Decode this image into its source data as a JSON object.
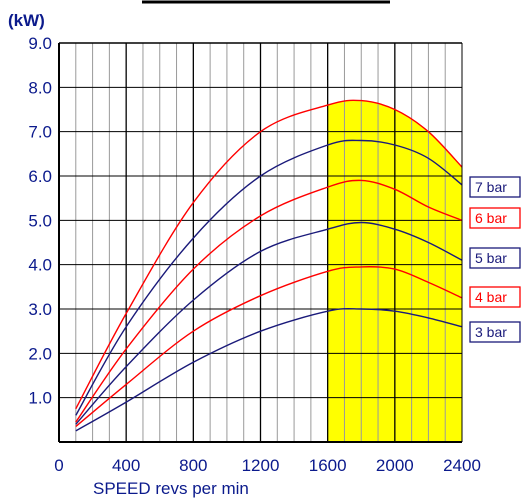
{
  "chart_data": {
    "type": "line",
    "title": "",
    "ylabel": "(kW)",
    "xlabel": "SPEED revs per min",
    "xlim": [
      0,
      2400
    ],
    "ylim": [
      0,
      9
    ],
    "x_ticks": [
      "0",
      "400",
      "800",
      "1200",
      "1600",
      "2000",
      "2400"
    ],
    "y_ticks": [
      "1.0",
      "2.0",
      "3.0",
      "4.0",
      "5.0",
      "6.0",
      "7.0",
      "8.0",
      "9.0"
    ],
    "grid": true,
    "highlight_range": [
      1600,
      2400
    ],
    "highlight_color": "#ffff00",
    "series": [
      {
        "name": "7 bar",
        "color": "#1a1a7a",
        "x": [
          100,
          400,
          800,
          1200,
          1600,
          1800,
          2000,
          2200,
          2400
        ],
        "y": [
          0.6,
          2.6,
          4.6,
          6.0,
          6.7,
          6.8,
          6.7,
          6.4,
          5.8
        ]
      },
      {
        "name": "6 bar",
        "color": "#ff0000",
        "x": [
          100,
          400,
          800,
          1200,
          1600,
          1800,
          2000,
          2200,
          2400
        ],
        "y": [
          0.45,
          2.1,
          3.9,
          5.1,
          5.75,
          5.9,
          5.7,
          5.3,
          5.0
        ]
      },
      {
        "name": "5 bar",
        "color": "#1a1a7a",
        "x": [
          100,
          400,
          800,
          1200,
          1600,
          1800,
          2000,
          2200,
          2400
        ],
        "y": [
          0.4,
          1.7,
          3.2,
          4.3,
          4.8,
          4.95,
          4.8,
          4.5,
          4.1
        ]
      },
      {
        "name": "4 bar",
        "color": "#ff0000",
        "x": [
          100,
          400,
          800,
          1200,
          1600,
          1800,
          2000,
          2200,
          2400
        ],
        "y": [
          0.35,
          1.3,
          2.5,
          3.3,
          3.85,
          3.95,
          3.9,
          3.6,
          3.25
        ]
      },
      {
        "name": "3 bar",
        "color": "#1a1a7a",
        "x": [
          100,
          400,
          800,
          1200,
          1600,
          1800,
          2000,
          2200,
          2400
        ],
        "y": [
          0.25,
          0.9,
          1.8,
          2.5,
          2.95,
          3.0,
          2.95,
          2.8,
          2.6
        ]
      },
      {
        "name": "",
        "color": "#ff0000",
        "x": [
          100,
          400,
          800,
          1200,
          1600,
          1800,
          2000,
          2200,
          2400
        ],
        "y": [
          0.75,
          2.9,
          5.4,
          7.0,
          7.6,
          7.7,
          7.5,
          7.0,
          6.2
        ]
      }
    ]
  }
}
